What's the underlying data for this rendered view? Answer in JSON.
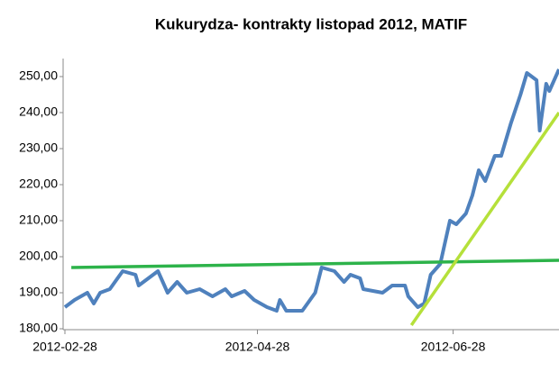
{
  "chart_data": {
    "type": "line",
    "title": "Kukurydza- kontrakty listopad 2012, MATIF",
    "xlim": [
      "2012-02-28",
      "2012-07-31"
    ],
    "xticks": [
      "2012-02-28",
      "2012-04-28",
      "2012-06-28"
    ],
    "ylim": [
      180,
      255
    ],
    "yticks": [
      {
        "value": 180,
        "label": "180,00"
      },
      {
        "value": 190,
        "label": "190,00"
      },
      {
        "value": 200,
        "label": "200,00"
      },
      {
        "value": 210,
        "label": "210,00"
      },
      {
        "value": 220,
        "label": "220,00"
      },
      {
        "value": 230,
        "label": "230,00"
      },
      {
        "value": 240,
        "label": "240,00"
      },
      {
        "value": 250,
        "label": "250,00"
      }
    ],
    "grid": false,
    "series": [
      {
        "color": "#4f81bd",
        "x": [
          "2012-02-28",
          "2012-03-02",
          "2012-03-06",
          "2012-03-08",
          "2012-03-10",
          "2012-03-13",
          "2012-03-17",
          "2012-03-21",
          "2012-03-22",
          "2012-03-25",
          "2012-03-28",
          "2012-03-31",
          "2012-04-03",
          "2012-04-06",
          "2012-04-10",
          "2012-04-14",
          "2012-04-18",
          "2012-04-20",
          "2012-04-24",
          "2012-04-27",
          "2012-05-01",
          "2012-05-04",
          "2012-05-05",
          "2012-05-07",
          "2012-05-12",
          "2012-05-16",
          "2012-05-18",
          "2012-05-22",
          "2012-05-25",
          "2012-05-27",
          "2012-05-30",
          "2012-05-31",
          "2012-06-06",
          "2012-06-09",
          "2012-06-13",
          "2012-06-14",
          "2012-06-17",
          "2012-06-19",
          "2012-06-21",
          "2012-06-24",
          "2012-06-27",
          "2012-06-29",
          "2012-07-02",
          "2012-07-04",
          "2012-07-06",
          "2012-07-08",
          "2012-07-11",
          "2012-07-13",
          "2012-07-16",
          "2012-07-19",
          "2012-07-21",
          "2012-07-24",
          "2012-07-25",
          "2012-07-27",
          "2012-07-28",
          "2012-07-31"
        ],
        "values": [
          186,
          188,
          190,
          187,
          190,
          191,
          196,
          195,
          192,
          194,
          196,
          190,
          193,
          190,
          191,
          189,
          191,
          189,
          190.5,
          188,
          186,
          185,
          188,
          185,
          185,
          190,
          197,
          196,
          193,
          195,
          194,
          191,
          190,
          192,
          192,
          189,
          186,
          187,
          195,
          198,
          210,
          209,
          212,
          217,
          224,
          221,
          228,
          228,
          237,
          245,
          251,
          249,
          235,
          248,
          246,
          252
        ]
      },
      {
        "color": "#2db34a",
        "x": [
          "2012-03-01",
          "2012-07-31"
        ],
        "values": [
          197,
          199
        ]
      },
      {
        "color": "#b5e03a",
        "x": [
          "2012-06-15",
          "2012-07-31"
        ],
        "values": [
          181,
          240
        ]
      }
    ]
  }
}
